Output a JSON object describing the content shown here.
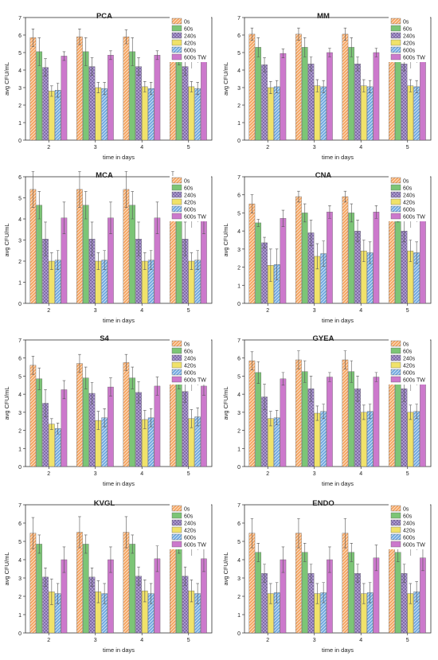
{
  "colors": {
    "0s": "#f4a460",
    "60s": "#7cc576",
    "240s": "#b3a1d6",
    "420s": "#f0e26a",
    "600s": "#6fa8e0",
    "600s TW": "#cc79cc",
    "sig": "#000000",
    "sig2": "#999999"
  },
  "chart_data": [
    {
      "type": "bar",
      "title": "PCA",
      "xlabel": "time in days",
      "ylabel": "avg CFU/mL",
      "categories": [
        "2",
        "3",
        "4",
        "5"
      ],
      "ylim": [
        0,
        7
      ],
      "yticks": [
        0,
        1,
        2,
        3,
        4,
        5,
        6,
        7
      ],
      "legend_position": "top-right",
      "significance_marks": [
        "*",
        "*"
      ],
      "series": [
        {
          "name": "0s",
          "values": [
            5.85,
            5.9,
            5.9,
            5.9
          ],
          "errors": [
            0.5,
            0.45,
            0.4,
            0.4
          ]
        },
        {
          "name": "60s",
          "values": [
            5.05,
            5.05,
            5.05,
            5.1
          ],
          "errors": [
            0.8,
            0.8,
            0.8,
            0.8
          ]
        },
        {
          "name": "240s",
          "values": [
            4.15,
            4.2,
            4.2,
            4.2
          ],
          "errors": [
            0.5,
            0.5,
            0.5,
            0.5
          ]
        },
        {
          "name": "420s",
          "values": [
            2.8,
            3.0,
            3.05,
            3.05
          ],
          "errors": [
            0.3,
            0.3,
            0.3,
            0.3
          ]
        },
        {
          "name": "600s",
          "values": [
            2.85,
            2.95,
            2.95,
            2.95
          ],
          "errors": [
            0.4,
            0.35,
            0.35,
            0.35
          ]
        },
        {
          "name": "600s TW",
          "values": [
            4.8,
            4.85,
            4.85,
            4.85
          ],
          "errors": [
            0.25,
            0.25,
            0.25,
            0.25
          ]
        }
      ]
    },
    {
      "type": "bar",
      "title": "MM",
      "xlabel": "time in days",
      "ylabel": "avg CFU/mL",
      "categories": [
        "2",
        "3",
        "4",
        "5"
      ],
      "ylim": [
        0,
        7
      ],
      "yticks": [
        0,
        1,
        2,
        3,
        4,
        5,
        6,
        7
      ],
      "legend_position": "top-right",
      "significance_marks": [
        "*",
        "*"
      ],
      "series": [
        {
          "name": "0s",
          "values": [
            6.05,
            6.05,
            6.05,
            6.05
          ],
          "errors": [
            0.35,
            0.35,
            0.35,
            0.35
          ]
        },
        {
          "name": "60s",
          "values": [
            5.3,
            5.3,
            5.3,
            5.3
          ],
          "errors": [
            0.55,
            0.55,
            0.55,
            0.55
          ]
        },
        {
          "name": "240s",
          "values": [
            4.3,
            4.35,
            4.35,
            4.35
          ],
          "errors": [
            0.4,
            0.4,
            0.4,
            0.4
          ]
        },
        {
          "name": "420s",
          "values": [
            3.0,
            3.1,
            3.1,
            3.1
          ],
          "errors": [
            0.35,
            0.35,
            0.35,
            0.35
          ]
        },
        {
          "name": "600s",
          "values": [
            3.05,
            3.05,
            3.05,
            3.05
          ],
          "errors": [
            0.35,
            0.35,
            0.35,
            0.35
          ]
        },
        {
          "name": "600s TW",
          "values": [
            4.95,
            5.0,
            5.0,
            5.0
          ],
          "errors": [
            0.25,
            0.25,
            0.25,
            0.25
          ]
        }
      ]
    },
    {
      "type": "bar",
      "title": "MCA",
      "xlabel": "time in days",
      "ylabel": "avg CFU/mL",
      "categories": [
        "2",
        "3",
        "4",
        "5"
      ],
      "ylim": [
        0,
        6
      ],
      "yticks": [
        0,
        1,
        2,
        3,
        4,
        5,
        6
      ],
      "legend_position": "top-right",
      "significance_marks": [
        "*",
        "*"
      ],
      "series": [
        {
          "name": "0s",
          "values": [
            5.4,
            5.4,
            5.4,
            5.4
          ],
          "errors": [
            0.85,
            0.85,
            0.85,
            0.85
          ]
        },
        {
          "name": "60s",
          "values": [
            4.65,
            4.65,
            4.65,
            4.65
          ],
          "errors": [
            0.65,
            0.65,
            0.65,
            0.65
          ]
        },
        {
          "name": "240s",
          "values": [
            3.05,
            3.05,
            3.05,
            3.05
          ],
          "errors": [
            0.8,
            0.8,
            0.8,
            0.8
          ]
        },
        {
          "name": "420s",
          "values": [
            2.0,
            2.0,
            2.0,
            2.0
          ],
          "errors": [
            0.4,
            0.4,
            0.4,
            0.4
          ]
        },
        {
          "name": "600s",
          "values": [
            2.05,
            2.05,
            2.05,
            2.05
          ],
          "errors": [
            0.45,
            0.45,
            0.45,
            0.45
          ]
        },
        {
          "name": "600s TW",
          "values": [
            4.05,
            4.05,
            4.05,
            4.05
          ],
          "errors": [
            0.75,
            0.75,
            0.75,
            0.75
          ]
        }
      ]
    },
    {
      "type": "bar",
      "title": "CNA",
      "xlabel": "time in days",
      "ylabel": "avg CFU/mL",
      "categories": [
        "2",
        "3",
        "4",
        "5"
      ],
      "ylim": [
        0,
        7
      ],
      "yticks": [
        0,
        1,
        2,
        3,
        4,
        5,
        6,
        7
      ],
      "legend_position": "top-right",
      "significance_marks": [
        "*",
        "*"
      ],
      "series": [
        {
          "name": "0s",
          "values": [
            5.5,
            5.9,
            5.9,
            5.9
          ],
          "errors": [
            0.5,
            0.3,
            0.3,
            0.3
          ]
        },
        {
          "name": "60s",
          "values": [
            4.45,
            5.0,
            5.0,
            5.0
          ],
          "errors": [
            0.2,
            0.5,
            0.5,
            0.5
          ]
        },
        {
          "name": "240s",
          "values": [
            3.35,
            3.9,
            4.0,
            4.0
          ],
          "errors": [
            0.3,
            0.7,
            0.6,
            0.6
          ]
        },
        {
          "name": "420s",
          "values": [
            2.1,
            2.6,
            2.9,
            2.9
          ],
          "errors": [
            0.9,
            0.7,
            0.6,
            0.6
          ]
        },
        {
          "name": "600s",
          "values": [
            2.15,
            2.75,
            2.8,
            2.8
          ],
          "errors": [
            0.85,
            0.7,
            0.6,
            0.6
          ]
        },
        {
          "name": "600s TW",
          "values": [
            4.7,
            5.05,
            5.05,
            5.05
          ],
          "errors": [
            0.45,
            0.35,
            0.35,
            0.35
          ]
        }
      ]
    },
    {
      "type": "bar",
      "title": "S4",
      "xlabel": "time in days",
      "ylabel": "avg CFU/mL",
      "categories": [
        "2",
        "3",
        "4",
        "5"
      ],
      "ylim": [
        0,
        7
      ],
      "yticks": [
        0,
        1,
        2,
        3,
        4,
        5,
        6,
        7
      ],
      "legend_position": "top-right",
      "significance_marks": [
        "*",
        "*"
      ],
      "series": [
        {
          "name": "0s",
          "values": [
            5.6,
            5.7,
            5.75,
            5.8
          ],
          "errors": [
            0.5,
            0.5,
            0.45,
            0.45
          ]
        },
        {
          "name": "60s",
          "values": [
            4.85,
            4.9,
            4.9,
            4.9
          ],
          "errors": [
            0.6,
            0.6,
            0.6,
            0.6
          ]
        },
        {
          "name": "240s",
          "values": [
            3.5,
            4.05,
            4.1,
            4.15
          ],
          "errors": [
            0.75,
            0.6,
            0.6,
            0.6
          ]
        },
        {
          "name": "420s",
          "values": [
            2.35,
            2.55,
            2.6,
            2.65
          ],
          "errors": [
            0.3,
            0.5,
            0.5,
            0.5
          ]
        },
        {
          "name": "600s",
          "values": [
            2.1,
            2.7,
            2.7,
            2.75
          ],
          "errors": [
            0.3,
            0.5,
            0.5,
            0.5
          ]
        },
        {
          "name": "600s TW",
          "values": [
            4.25,
            4.4,
            4.45,
            4.45
          ],
          "errors": [
            0.5,
            0.5,
            0.5,
            0.5
          ]
        }
      ]
    },
    {
      "type": "bar",
      "title": "GYEA",
      "xlabel": "time in days",
      "ylabel": "avg CFU/mL",
      "categories": [
        "2",
        "3",
        "4",
        "5"
      ],
      "ylim": [
        0,
        7
      ],
      "yticks": [
        0,
        1,
        2,
        3,
        4,
        5,
        6,
        7
      ],
      "legend_position": "top-right",
      "significance_marks": [
        "*",
        "*"
      ],
      "series": [
        {
          "name": "0s",
          "values": [
            5.85,
            5.9,
            5.9,
            5.9
          ],
          "errors": [
            0.5,
            0.5,
            0.5,
            0.5
          ]
        },
        {
          "name": "60s",
          "values": [
            5.2,
            5.25,
            5.25,
            5.25
          ],
          "errors": [
            0.6,
            0.6,
            0.6,
            0.6
          ]
        },
        {
          "name": "240s",
          "values": [
            3.85,
            4.3,
            4.3,
            4.3
          ],
          "errors": [
            0.7,
            0.7,
            0.7,
            0.7
          ]
        },
        {
          "name": "420s",
          "values": [
            2.65,
            2.95,
            3.0,
            3.0
          ],
          "errors": [
            0.4,
            0.4,
            0.4,
            0.4
          ]
        },
        {
          "name": "600s",
          "values": [
            2.7,
            3.05,
            3.05,
            3.05
          ],
          "errors": [
            0.4,
            0.4,
            0.4,
            0.4
          ]
        },
        {
          "name": "600s TW",
          "values": [
            4.85,
            4.95,
            4.95,
            4.95
          ],
          "errors": [
            0.35,
            0.25,
            0.25,
            0.25
          ]
        }
      ]
    },
    {
      "type": "bar",
      "title": "KVGL",
      "xlabel": "time in days",
      "ylabel": "avg CFU/mL",
      "categories": [
        "2",
        "3",
        "4",
        "5"
      ],
      "ylim": [
        0,
        7
      ],
      "yticks": [
        0,
        1,
        2,
        3,
        4,
        5,
        6,
        7
      ],
      "legend_position": "top-right",
      "significance_marks": [
        "*",
        "*"
      ],
      "series": [
        {
          "name": "0s",
          "values": [
            5.45,
            5.5,
            5.5,
            5.5
          ],
          "errors": [
            0.85,
            0.85,
            0.85,
            0.85
          ]
        },
        {
          "name": "60s",
          "values": [
            4.85,
            4.85,
            4.85,
            4.85
          ],
          "errors": [
            0.5,
            0.5,
            0.5,
            0.5
          ]
        },
        {
          "name": "240s",
          "values": [
            3.05,
            3.05,
            3.1,
            3.1
          ],
          "errors": [
            0.5,
            0.5,
            0.5,
            0.5
          ]
        },
        {
          "name": "420s",
          "values": [
            2.25,
            2.25,
            2.3,
            2.3
          ],
          "errors": [
            0.7,
            0.6,
            0.6,
            0.6
          ]
        },
        {
          "name": "600s",
          "values": [
            2.15,
            2.15,
            2.15,
            2.15
          ],
          "errors": [
            0.55,
            0.55,
            0.55,
            0.55
          ]
        },
        {
          "name": "600s TW",
          "values": [
            4.0,
            4.0,
            4.05,
            4.05
          ],
          "errors": [
            0.7,
            0.7,
            0.7,
            0.7
          ]
        }
      ]
    },
    {
      "type": "bar",
      "title": "ENDO",
      "xlabel": "time in days",
      "ylabel": "avg CFU/mL",
      "categories": [
        "2",
        "3",
        "4",
        "5"
      ],
      "ylim": [
        0,
        7
      ],
      "yticks": [
        0,
        1,
        2,
        3,
        4,
        5,
        6,
        7
      ],
      "legend_position": "top-right",
      "significance_marks": [
        "*",
        "*"
      ],
      "series": [
        {
          "name": "0s",
          "values": [
            5.45,
            5.45,
            5.45,
            5.45
          ],
          "errors": [
            0.8,
            0.8,
            0.8,
            0.8
          ]
        },
        {
          "name": "60s",
          "values": [
            4.4,
            4.4,
            4.4,
            4.4
          ],
          "errors": [
            0.5,
            0.5,
            0.5,
            0.5
          ]
        },
        {
          "name": "240s",
          "values": [
            3.25,
            3.25,
            3.25,
            3.25
          ],
          "errors": [
            0.5,
            0.5,
            0.5,
            0.5
          ]
        },
        {
          "name": "420s",
          "values": [
            2.15,
            2.15,
            2.15,
            2.15
          ],
          "errors": [
            0.55,
            0.55,
            0.55,
            0.55
          ]
        },
        {
          "name": "600s",
          "values": [
            2.2,
            2.2,
            2.2,
            2.25
          ],
          "errors": [
            0.55,
            0.55,
            0.55,
            0.55
          ]
        },
        {
          "name": "600s TW",
          "values": [
            4.0,
            4.0,
            4.1,
            4.1
          ],
          "errors": [
            0.7,
            0.7,
            0.7,
            0.7
          ]
        }
      ]
    }
  ]
}
